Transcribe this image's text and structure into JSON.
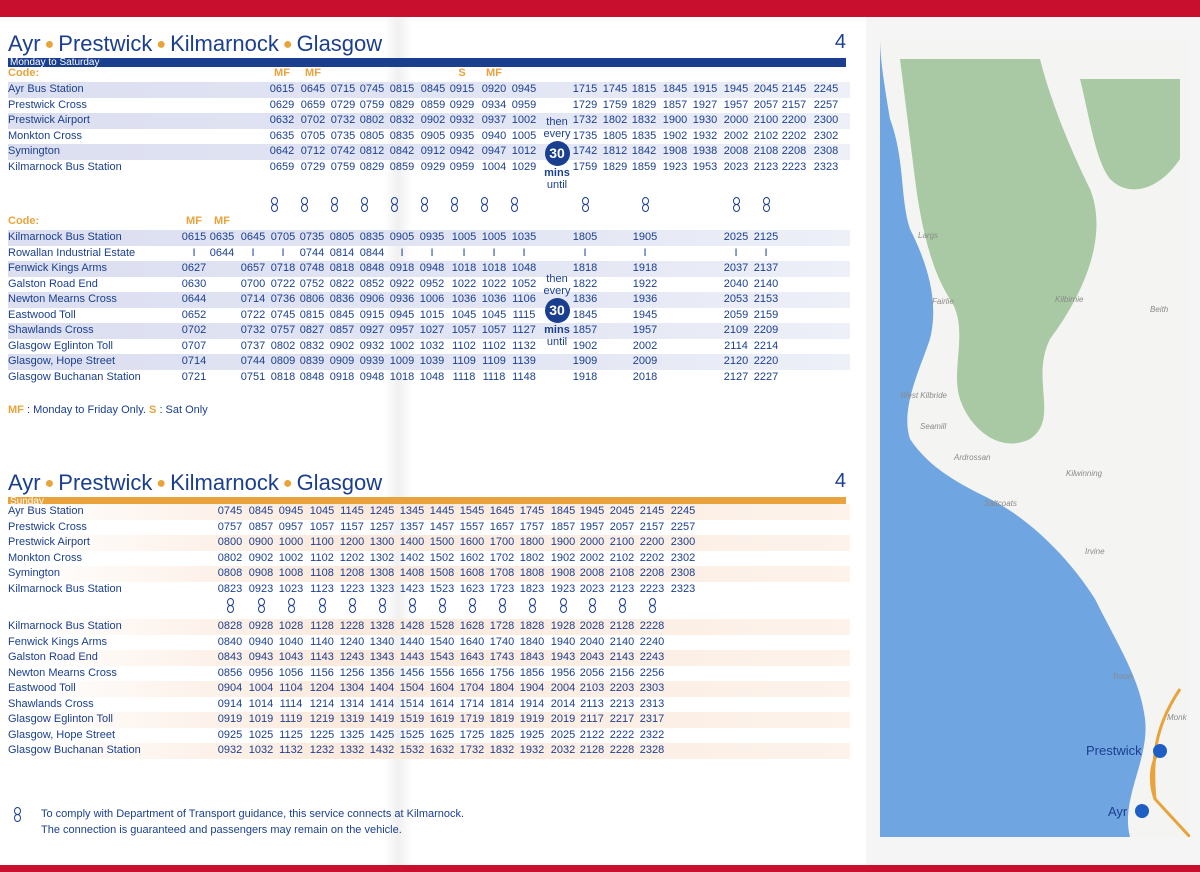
{
  "weekday": {
    "title_parts": [
      "Ayr",
      "Prestwick",
      "Kilmarnock",
      "Glasgow"
    ],
    "route_number": "4",
    "band": "Monday to Saturday",
    "code_label": "Code:",
    "top_codes": [
      "MF",
      "MF",
      "",
      "",
      "",
      "",
      "S",
      "MF",
      "",
      "",
      "",
      "",
      "",
      "",
      "",
      "",
      "",
      ""
    ],
    "top_rows": [
      {
        "stop": "Ayr Bus Station",
        "times": [
          "0615",
          "0645",
          "0715",
          "0745",
          "0815",
          "0845",
          "0915",
          "0920",
          "0945",
          "1715",
          "1745",
          "1815",
          "1845",
          "1915",
          "1945",
          "2045",
          "2145",
          "2245"
        ]
      },
      {
        "stop": "Prestwick Cross",
        "times": [
          "0629",
          "0659",
          "0729",
          "0759",
          "0829",
          "0859",
          "0929",
          "0934",
          "0959",
          "1729",
          "1759",
          "1829",
          "1857",
          "1927",
          "1957",
          "2057",
          "2157",
          "2257"
        ]
      },
      {
        "stop": "Prestwick Airport",
        "times": [
          "0632",
          "0702",
          "0732",
          "0802",
          "0832",
          "0902",
          "0932",
          "0937",
          "1002",
          "1732",
          "1802",
          "1832",
          "1900",
          "1930",
          "2000",
          "2100",
          "2200",
          "2300"
        ]
      },
      {
        "stop": "Monkton Cross",
        "times": [
          "0635",
          "0705",
          "0735",
          "0805",
          "0835",
          "0905",
          "0935",
          "0940",
          "1005",
          "1735",
          "1805",
          "1835",
          "1902",
          "1932",
          "2002",
          "2102",
          "2202",
          "2302"
        ]
      },
      {
        "stop": "Symington",
        "times": [
          "0642",
          "0712",
          "0742",
          "0812",
          "0842",
          "0912",
          "0942",
          "0947",
          "1012",
          "1742",
          "1812",
          "1842",
          "1908",
          "1938",
          "2008",
          "2108",
          "2208",
          "2308"
        ]
      },
      {
        "stop": "Kilmarnock Bus Station",
        "times": [
          "0659",
          "0729",
          "0759",
          "0829",
          "0859",
          "0929",
          "0959",
          "1004",
          "1029",
          "1759",
          "1829",
          "1859",
          "1923",
          "1953",
          "2023",
          "2123",
          "2223",
          "2323"
        ]
      }
    ],
    "bottom_codes": [
      "MF",
      "MF",
      "",
      "",
      "",
      "",
      "",
      "",
      "",
      "",
      "",
      "",
      "",
      "",
      "",
      ""
    ],
    "bottom_rows": [
      {
        "stop": "Kilmarnock Bus Station",
        "times": [
          "0615",
          "0635",
          "0645",
          "0705",
          "0735",
          "0805",
          "0835",
          "0905",
          "0935",
          "1005",
          "1005",
          "1035",
          "1805",
          "1905",
          "2025",
          "2125"
        ]
      },
      {
        "stop": "Rowallan Industrial Estate",
        "times": [
          "I",
          "0644",
          "I",
          "I",
          "0744",
          "0814",
          "0844",
          "I",
          "I",
          "I",
          "I",
          "I",
          "I",
          "I",
          "I",
          "I"
        ]
      },
      {
        "stop": "Fenwick Kings Arms",
        "times": [
          "0627",
          "",
          "0657",
          "0718",
          "0748",
          "0818",
          "0848",
          "0918",
          "0948",
          "1018",
          "1018",
          "1048",
          "1818",
          "1918",
          "2037",
          "2137"
        ]
      },
      {
        "stop": "Galston Road End",
        "times": [
          "0630",
          "",
          "0700",
          "0722",
          "0752",
          "0822",
          "0852",
          "0922",
          "0952",
          "1022",
          "1022",
          "1052",
          "1822",
          "1922",
          "2040",
          "2140"
        ]
      },
      {
        "stop": "Newton Mearns Cross",
        "times": [
          "0644",
          "",
          "0714",
          "0736",
          "0806",
          "0836",
          "0906",
          "0936",
          "1006",
          "1036",
          "1036",
          "1106",
          "1836",
          "1936",
          "2053",
          "2153"
        ]
      },
      {
        "stop": "Eastwood Toll",
        "times": [
          "0652",
          "",
          "0722",
          "0745",
          "0815",
          "0845",
          "0915",
          "0945",
          "1015",
          "1045",
          "1045",
          "1115",
          "1845",
          "1945",
          "2059",
          "2159"
        ]
      },
      {
        "stop": "Shawlands Cross",
        "times": [
          "0702",
          "",
          "0732",
          "0757",
          "0827",
          "0857",
          "0927",
          "0957",
          "1027",
          "1057",
          "1057",
          "1127",
          "1857",
          "1957",
          "2109",
          "2209"
        ]
      },
      {
        "stop": "Glasgow Eglinton Toll",
        "times": [
          "0707",
          "",
          "0737",
          "0802",
          "0832",
          "0902",
          "0932",
          "1002",
          "1032",
          "1102",
          "1102",
          "1132",
          "1902",
          "2002",
          "2114",
          "2214"
        ]
      },
      {
        "stop": "Glasgow, Hope Street",
        "times": [
          "0714",
          "",
          "0744",
          "0809",
          "0839",
          "0909",
          "0939",
          "1009",
          "1039",
          "1109",
          "1109",
          "1139",
          "1909",
          "2009",
          "2120",
          "2220"
        ]
      },
      {
        "stop": "Glasgow Buchanan Station",
        "times": [
          "0721",
          "",
          "0751",
          "0818",
          "0848",
          "0918",
          "0948",
          "1018",
          "1048",
          "1118",
          "1118",
          "1148",
          "1918",
          "2018",
          "2127",
          "2227"
        ]
      }
    ],
    "freq": {
      "then": "then",
      "every": "every",
      "minutes": "30",
      "mins": "mins",
      "until": "until"
    },
    "legend": {
      "mf_key": "MF",
      "mf_text": ": Monday to Friday Only.",
      "s_key": "S",
      "s_text": ": Sat Only"
    }
  },
  "sunday": {
    "title_parts": [
      "Ayr",
      "Prestwick",
      "Kilmarnock",
      "Glasgow"
    ],
    "route_number": "4",
    "band": "Sunday",
    "top_rows": [
      {
        "stop": "Ayr Bus Station",
        "times": [
          "0745",
          "0845",
          "0945",
          "1045",
          "1145",
          "1245",
          "1345",
          "1445",
          "1545",
          "1645",
          "1745",
          "1845",
          "1945",
          "2045",
          "2145",
          "2245"
        ]
      },
      {
        "stop": "Prestwick Cross",
        "times": [
          "0757",
          "0857",
          "0957",
          "1057",
          "1157",
          "1257",
          "1357",
          "1457",
          "1557",
          "1657",
          "1757",
          "1857",
          "1957",
          "2057",
          "2157",
          "2257"
        ]
      },
      {
        "stop": "Prestwick Airport",
        "times": [
          "0800",
          "0900",
          "1000",
          "1100",
          "1200",
          "1300",
          "1400",
          "1500",
          "1600",
          "1700",
          "1800",
          "1900",
          "2000",
          "2100",
          "2200",
          "2300"
        ]
      },
      {
        "stop": "Monkton Cross",
        "times": [
          "0802",
          "0902",
          "1002",
          "1102",
          "1202",
          "1302",
          "1402",
          "1502",
          "1602",
          "1702",
          "1802",
          "1902",
          "2002",
          "2102",
          "2202",
          "2302"
        ]
      },
      {
        "stop": "Symington",
        "times": [
          "0808",
          "0908",
          "1008",
          "1108",
          "1208",
          "1308",
          "1408",
          "1508",
          "1608",
          "1708",
          "1808",
          "1908",
          "2008",
          "2108",
          "2208",
          "2308"
        ]
      },
      {
        "stop": "Kilmarnock Bus Station",
        "times": [
          "0823",
          "0923",
          "1023",
          "1123",
          "1223",
          "1323",
          "1423",
          "1523",
          "1623",
          "1723",
          "1823",
          "1923",
          "2023",
          "2123",
          "2223",
          "2323"
        ]
      }
    ],
    "bottom_rows": [
      {
        "stop": "Kilmarnock Bus Station",
        "times": [
          "0828",
          "0928",
          "1028",
          "1128",
          "1228",
          "1328",
          "1428",
          "1528",
          "1628",
          "1728",
          "1828",
          "1928",
          "2028",
          "2128",
          "2228"
        ]
      },
      {
        "stop": "Fenwick Kings Arms",
        "times": [
          "0840",
          "0940",
          "1040",
          "1140",
          "1240",
          "1340",
          "1440",
          "1540",
          "1640",
          "1740",
          "1840",
          "1940",
          "2040",
          "2140",
          "2240"
        ]
      },
      {
        "stop": "Galston Road End",
        "times": [
          "0843",
          "0943",
          "1043",
          "1143",
          "1243",
          "1343",
          "1443",
          "1543",
          "1643",
          "1743",
          "1843",
          "1943",
          "2043",
          "2143",
          "2243"
        ]
      },
      {
        "stop": "Newton Mearns Cross",
        "times": [
          "0856",
          "0956",
          "1056",
          "1156",
          "1256",
          "1356",
          "1456",
          "1556",
          "1656",
          "1756",
          "1856",
          "1956",
          "2056",
          "2156",
          "2256"
        ]
      },
      {
        "stop": "Eastwood Toll",
        "times": [
          "0904",
          "1004",
          "1104",
          "1204",
          "1304",
          "1404",
          "1504",
          "1604",
          "1704",
          "1804",
          "1904",
          "2004",
          "2103",
          "2203",
          "2303"
        ]
      },
      {
        "stop": "Shawlands Cross",
        "times": [
          "0914",
          "1014",
          "1114",
          "1214",
          "1314",
          "1414",
          "1514",
          "1614",
          "1714",
          "1814",
          "1914",
          "2014",
          "2113",
          "2213",
          "2313"
        ]
      },
      {
        "stop": "Glasgow Eglinton Toll",
        "times": [
          "0919",
          "1019",
          "1119",
          "1219",
          "1319",
          "1419",
          "1519",
          "1619",
          "1719",
          "1819",
          "1919",
          "2019",
          "2117",
          "2217",
          "2317"
        ]
      },
      {
        "stop": "Glasgow, Hope Street",
        "times": [
          "0925",
          "1025",
          "1125",
          "1225",
          "1325",
          "1425",
          "1525",
          "1625",
          "1725",
          "1825",
          "1925",
          "2025",
          "2122",
          "2222",
          "2322"
        ]
      },
      {
        "stop": "Glasgow Buchanan Station",
        "times": [
          "0932",
          "1032",
          "1132",
          "1232",
          "1332",
          "1432",
          "1532",
          "1632",
          "1732",
          "1832",
          "1932",
          "2032",
          "2128",
          "2228",
          "2328"
        ]
      }
    ]
  },
  "notice": {
    "line1": "To comply with Department of Transport guidance, this service connects at Kilmarnock.",
    "line2": "The connection is guaranteed and passengers may remain on the vehicle."
  },
  "map": {
    "places": [
      "Largs",
      "Fairlie",
      "Kilbirnie",
      "Beith",
      "West Kilbride",
      "Seamill",
      "Ardrossan",
      "Kilwinning",
      "Saltcoats",
      "Irvine",
      "Troon",
      "Monk"
    ],
    "towns": [
      "Prestwick",
      "Ayr"
    ],
    "colors": {
      "sea": "#6fa5e0",
      "land": "#f4f4f2",
      "green": "#a8c9a3",
      "route": "#e8a33c",
      "stop": "#1f5fc4"
    }
  }
}
